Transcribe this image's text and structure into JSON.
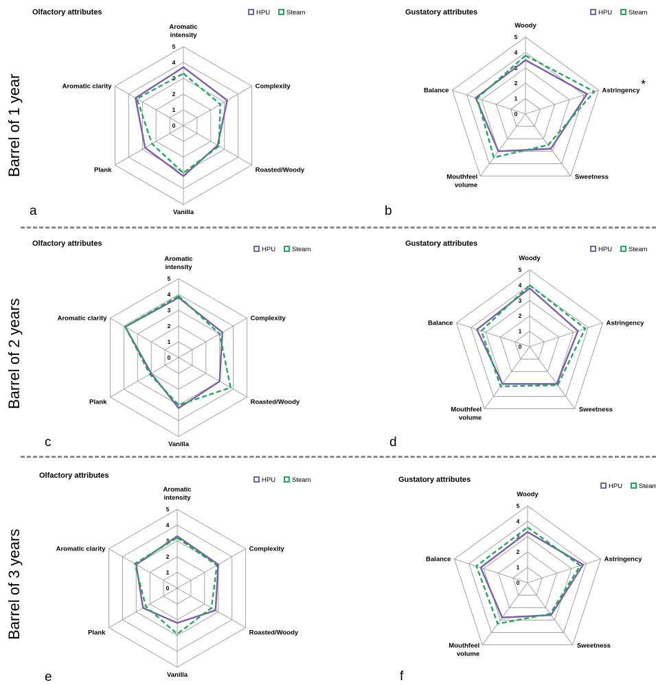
{
  "row_labels": [
    "Barrel of 1 year",
    "Barrel of 2 years",
    "Barrel of 3 years"
  ],
  "colors": {
    "HPU": "#7b5ea7",
    "Steam": "#1fa85a",
    "grid": "#9a9a9a",
    "separator": "#8a8a8a"
  },
  "legend": [
    "HPU",
    "Steam"
  ],
  "chart_data": [
    {
      "type": "radar",
      "panel": "a",
      "title": "Olfactory attributes",
      "axes": [
        "Aromatic\nintensity",
        "Complexity",
        "Roasted/Woody",
        "Vanilla",
        "Plank",
        "Aromatic clarity"
      ],
      "ticks": [
        0,
        1,
        2,
        3,
        4,
        5
      ],
      "range": [
        0,
        5
      ],
      "grid": true,
      "legend_position": "top-right",
      "series": [
        {
          "name": "HPU",
          "values": [
            3.7,
            3.2,
            2.5,
            3.2,
            2.8,
            3.5
          ]
        },
        {
          "name": "Steam",
          "values": [
            3.3,
            2.7,
            2.6,
            3.0,
            2.3,
            3.4
          ]
        }
      ],
      "annotation": ""
    },
    {
      "type": "radar",
      "panel": "b",
      "title": "Gustatory attributes",
      "axes": [
        "Woody",
        "Astringency",
        "Sweetness",
        "Mouthfeel\nvolume",
        "Balance"
      ],
      "ticks": [
        0,
        1,
        2,
        3,
        4,
        5
      ],
      "range": [
        0,
        5
      ],
      "grid": true,
      "legend_position": "top-right",
      "series": [
        {
          "name": "HPU",
          "values": [
            3.5,
            4.2,
            2.8,
            3.0,
            3.4
          ]
        },
        {
          "name": "Steam",
          "values": [
            3.8,
            4.7,
            2.5,
            3.5,
            3.3
          ]
        }
      ],
      "annotation": "*"
    },
    {
      "type": "radar",
      "panel": "c",
      "title": "Olfactory attributes",
      "axes": [
        "Aromatic\nintensity",
        "Complexity",
        "Roasted/Woody",
        "Vanilla",
        "Plank",
        "Aromatic clarity"
      ],
      "ticks": [
        0,
        1,
        2,
        3,
        4,
        5
      ],
      "range": [
        0,
        5
      ],
      "grid": true,
      "legend_position": "top-right",
      "series": [
        {
          "name": "HPU",
          "values": [
            3.8,
            3.2,
            3.0,
            3.2,
            2.0,
            3.9
          ]
        },
        {
          "name": "Steam",
          "values": [
            3.9,
            3.0,
            3.8,
            3.0,
            2.1,
            3.9
          ]
        }
      ],
      "annotation": ""
    },
    {
      "type": "radar",
      "panel": "d",
      "title": "Gustatory attributes",
      "axes": [
        "Woody",
        "Astringency",
        "Sweetness",
        "Mouthfeel\nvolume",
        "Balance"
      ],
      "ticks": [
        0,
        1,
        2,
        3,
        4,
        5
      ],
      "range": [
        0,
        5
      ],
      "grid": true,
      "legend_position": "top-right",
      "series": [
        {
          "name": "HPU",
          "values": [
            3.8,
            3.3,
            3.0,
            3.0,
            3.6
          ]
        },
        {
          "name": "Steam",
          "values": [
            4.0,
            3.8,
            3.1,
            3.2,
            3.3
          ]
        }
      ],
      "annotation": ""
    },
    {
      "type": "radar",
      "panel": "e",
      "title": "Olfactory attributes",
      "axes": [
        "Aromatic\nintensity",
        "Complexity",
        "Roasted/Woody",
        "Vanilla",
        "Plank",
        "Aromatic clarity"
      ],
      "ticks": [
        0,
        1,
        2,
        3,
        4,
        5
      ],
      "range": [
        0,
        5
      ],
      "grid": true,
      "legend_position": "top-right",
      "series": [
        {
          "name": "HPU",
          "values": [
            3.3,
            3.0,
            2.8,
            2.2,
            2.5,
            3.0
          ]
        },
        {
          "name": "Steam",
          "values": [
            3.2,
            2.9,
            2.5,
            2.9,
            2.3,
            3.1
          ]
        }
      ],
      "annotation": ""
    },
    {
      "type": "radar",
      "panel": "f",
      "title": "Gustatory attributes",
      "axes": [
        "Woody",
        "Astringency",
        "Sweetness",
        "Mouthfeel\nvolume",
        "Balance"
      ],
      "ticks": [
        0,
        1,
        2,
        3,
        4,
        5
      ],
      "range": [
        0,
        5
      ],
      "grid": true,
      "legend_position": "top-right",
      "series": [
        {
          "name": "HPU",
          "values": [
            3.3,
            3.8,
            2.6,
            2.8,
            3.2
          ]
        },
        {
          "name": "Steam",
          "values": [
            3.6,
            3.6,
            2.5,
            3.3,
            3.5
          ]
        }
      ],
      "annotation": ""
    }
  ]
}
